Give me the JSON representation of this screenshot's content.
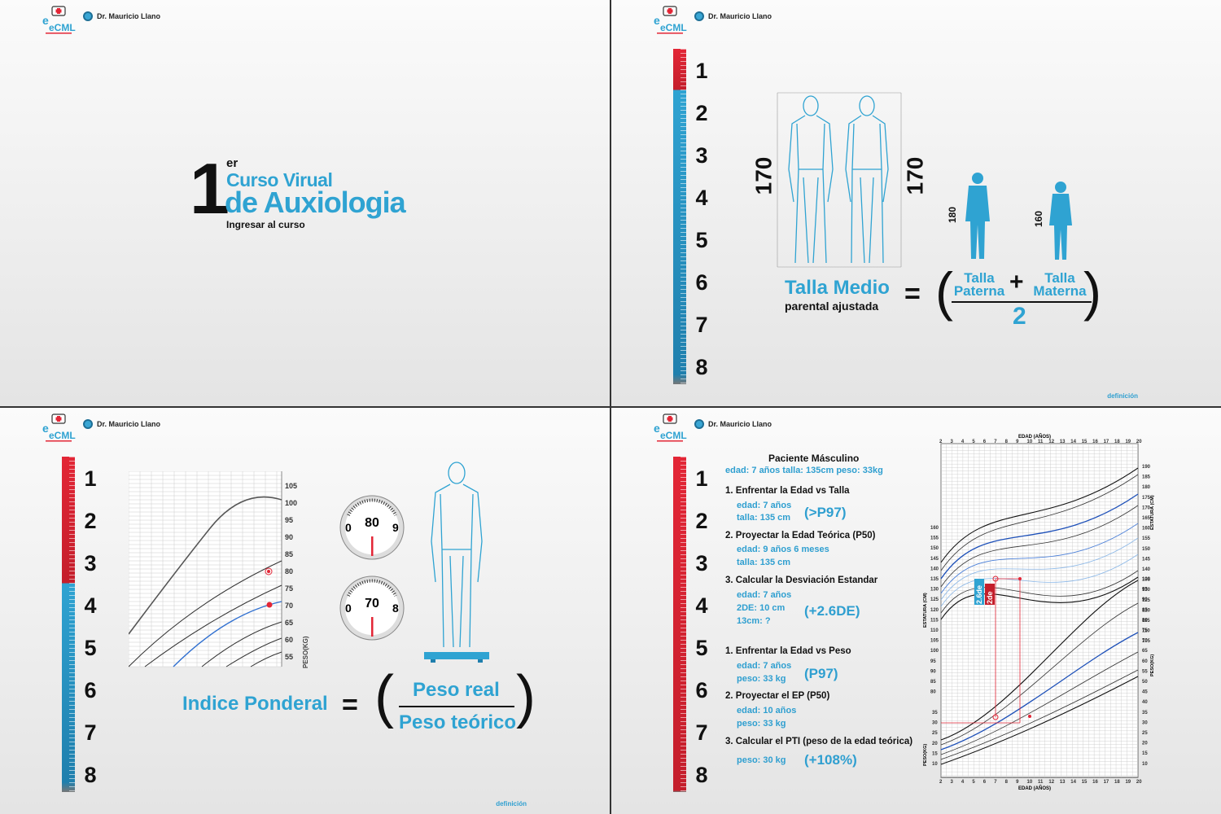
{
  "brand": {
    "logo_text": "eCML",
    "author": "Dr. Mauricio Llano"
  },
  "ruler_numbers": [
    "1",
    "2",
    "3",
    "4",
    "5",
    "6",
    "7",
    "8"
  ],
  "footer_link": "definición",
  "slide1": {
    "number": "1",
    "sup": "er",
    "line1": "Curso Virual",
    "line2": "de Auxiologia",
    "cta": "Ingresar al curso"
  },
  "slide2": {
    "height_left": "170",
    "height_right": "170",
    "father_height": "180",
    "mother_height": "160",
    "label_main": "Talla Medio",
    "label_sub": "parental ajustada",
    "equals": "=",
    "open_paren": "(",
    "close_paren": ")",
    "paterna_top": "Talla",
    "paterna_bottom": "Paterna",
    "plus": "+",
    "materna_top": "Talla",
    "materna_bottom": "Materna",
    "divisor": "2"
  },
  "slide3": {
    "y_ticks": [
      "105",
      "100",
      "95",
      "90",
      "85",
      "80",
      "75",
      "70",
      "65",
      "60",
      "55"
    ],
    "y_label": "PESO(KG)",
    "scale1": {
      "left": "0",
      "center": "80",
      "right": "9"
    },
    "scale2": {
      "left": "0",
      "center": "70",
      "right": "8"
    },
    "label": "Indice Ponderal",
    "equals": "=",
    "open_paren": "(",
    "close_paren": ")",
    "numerator": "Peso real",
    "denominator": "Peso teórico"
  },
  "slide4": {
    "title": "Paciente Másculino",
    "summary": "edad: 7 años  talla: 135cm  peso: 33kg",
    "step1": "1. Enfrentar la Edad vs Talla",
    "step1_a": "edad: 7 años",
    "step1_b": "talla: 135 cm",
    "step1_r": "(>P97)",
    "step2": "2. Proyectar la Edad Teórica (P50)",
    "step2_a": "edad: 9 años 6 meses",
    "step2_b": "talla: 135 cm",
    "step3": "3. Calcular la Desviación Estandar",
    "step3_a": "edad: 7 años",
    "step3_b": "2DE: 10 cm",
    "step3_c": "13cm: ?",
    "step3_r": "(+2.6DE)",
    "step4": "1. Enfrentar la Edad vs Peso",
    "step4_a": "edad: 7 años",
    "step4_b": "peso: 33 kg",
    "step4_r": "(P97)",
    "step5": "2. Proyectar el EP (P50)",
    "step5_a": "edad: 10 años",
    "step5_b": "peso: 33 kg",
    "step6": "3. Calcular el PTI (peso de la edad teórica)",
    "step6_a": "peso: 30 kg",
    "step6_r": "(+108%)",
    "chart": {
      "x_title": "EDAD (AÑOS)",
      "x_ticks": [
        "2",
        "3",
        "4",
        "5",
        "6",
        "7",
        "8",
        "9",
        "10",
        "11",
        "12",
        "13",
        "14",
        "15",
        "16",
        "17",
        "18",
        "19",
        "20"
      ],
      "y_left_height": [
        "160",
        "155",
        "150",
        "145",
        "140",
        "135",
        "130",
        "125",
        "120",
        "115",
        "110",
        "105",
        "100",
        "95",
        "90",
        "85",
        "80"
      ],
      "y_left_weight": [
        "35",
        "30",
        "25",
        "20",
        "15",
        "10"
      ],
      "y_right_height": [
        "190",
        "185",
        "180",
        "175",
        "170",
        "165",
        "160",
        "155",
        "150",
        "145",
        "140",
        "135",
        "130",
        "125",
        "120",
        "115",
        "110",
        "105"
      ],
      "y_right_weight": [
        "100",
        "95",
        "90",
        "85",
        "80",
        "75",
        "70",
        "65",
        "60",
        "55",
        "50",
        "45",
        "40",
        "35",
        "30",
        "25",
        "20",
        "15",
        "10"
      ],
      "label_estatura": "ESTATURA (CM)",
      "label_peso": "PESO(KG)",
      "tag_a": "2.6de",
      "tag_b": "2de"
    }
  }
}
